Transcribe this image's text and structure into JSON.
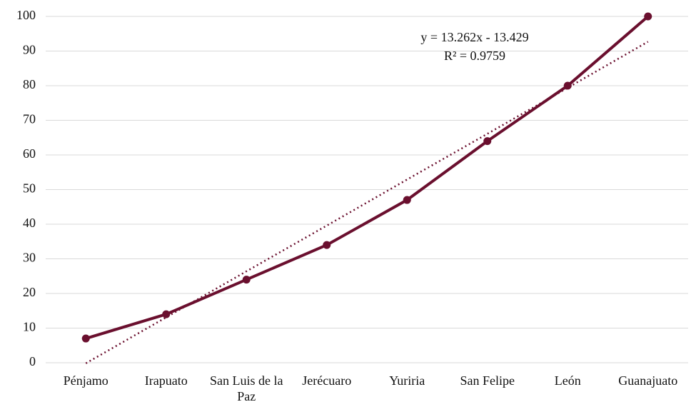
{
  "chart_data": {
    "type": "line",
    "categories": [
      "Pénjamo",
      "Irapuato",
      "San Luis de la Paz",
      "Jerécuaro",
      "Yuriria",
      "San Felipe",
      "León",
      "Guanajuato"
    ],
    "series": [
      {
        "color": "#6a0f2e",
        "values": [
          7,
          14,
          24,
          34,
          47,
          64,
          80,
          100
        ]
      }
    ],
    "trendline": {
      "color": "#6a0f2e",
      "values": [
        -0.17,
        13.1,
        26.4,
        39.6,
        52.9,
        66.1,
        79.4,
        92.7
      ]
    },
    "annotations": [
      "y = 13.262x - 13.429",
      "R² = 0.9759"
    ],
    "ylim": [
      0,
      100
    ],
    "yticks": [
      0,
      10,
      20,
      30,
      40,
      50,
      60,
      70,
      80,
      90,
      100
    ],
    "grid": true
  }
}
